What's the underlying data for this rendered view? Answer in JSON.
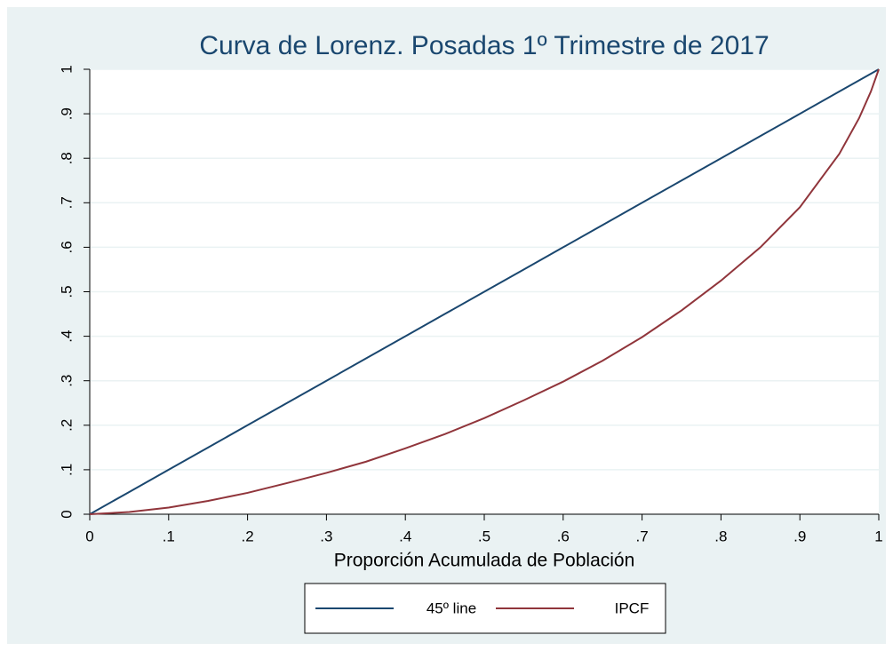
{
  "chart_data": {
    "type": "line",
    "title": "Curva de Lorenz. Posadas 1º Trimestre de 2017",
    "xlabel": "Proporción Acumulada de Población",
    "x": [
      0,
      0.05,
      0.1,
      0.15,
      0.2,
      0.25,
      0.3,
      0.35,
      0.4,
      0.45,
      0.5,
      0.55,
      0.6,
      0.65,
      0.7,
      0.75,
      0.8,
      0.85,
      0.9,
      0.95,
      0.975,
      0.99,
      1
    ],
    "series": [
      {
        "name": "45º  line",
        "color": "#1a476f",
        "values": [
          0,
          0.05,
          0.1,
          0.15,
          0.2,
          0.25,
          0.3,
          0.35,
          0.4,
          0.45,
          0.5,
          0.55,
          0.6,
          0.65,
          0.7,
          0.75,
          0.8,
          0.85,
          0.9,
          0.95,
          0.975,
          0.99,
          1
        ]
      },
      {
        "name": "IPCF",
        "color": "#90353b",
        "values": [
          0,
          0.005,
          0.015,
          0.03,
          0.048,
          0.07,
          0.093,
          0.118,
          0.148,
          0.18,
          0.216,
          0.256,
          0.298,
          0.345,
          0.398,
          0.458,
          0.525,
          0.6,
          0.69,
          0.81,
          0.89,
          0.95,
          1
        ]
      }
    ],
    "xlim": [
      0,
      1
    ],
    "xticks": [
      0,
      {
        "value": 0.1,
        "label": ".1"
      },
      {
        "value": 0.2,
        "label": ".2"
      },
      {
        "value": 0.3,
        "label": ".3"
      },
      {
        "value": 0.4,
        "label": ".4"
      },
      {
        "value": 0.5,
        "label": ".5"
      },
      {
        "value": 0.6,
        "label": ".6"
      },
      {
        "value": 0.7,
        "label": ".7"
      },
      {
        "value": 0.8,
        "label": ".8"
      },
      {
        "value": 0.9,
        "label": ".9"
      },
      1
    ],
    "ylim": [
      0,
      1
    ],
    "yticks": [
      0,
      {
        "value": 0.1,
        "label": ".1"
      },
      {
        "value": 0.2,
        "label": ".2"
      },
      {
        "value": 0.3,
        "label": ".3"
      },
      {
        "value": 0.4,
        "label": ".4"
      },
      {
        "value": 0.5,
        "label": ".5"
      },
      {
        "value": 0.6,
        "label": ".6"
      },
      {
        "value": 0.7,
        "label": ".7"
      },
      {
        "value": 0.8,
        "label": ".8"
      },
      {
        "value": 0.9,
        "label": ".9"
      },
      1
    ],
    "grid": true,
    "legend": "bottom"
  }
}
